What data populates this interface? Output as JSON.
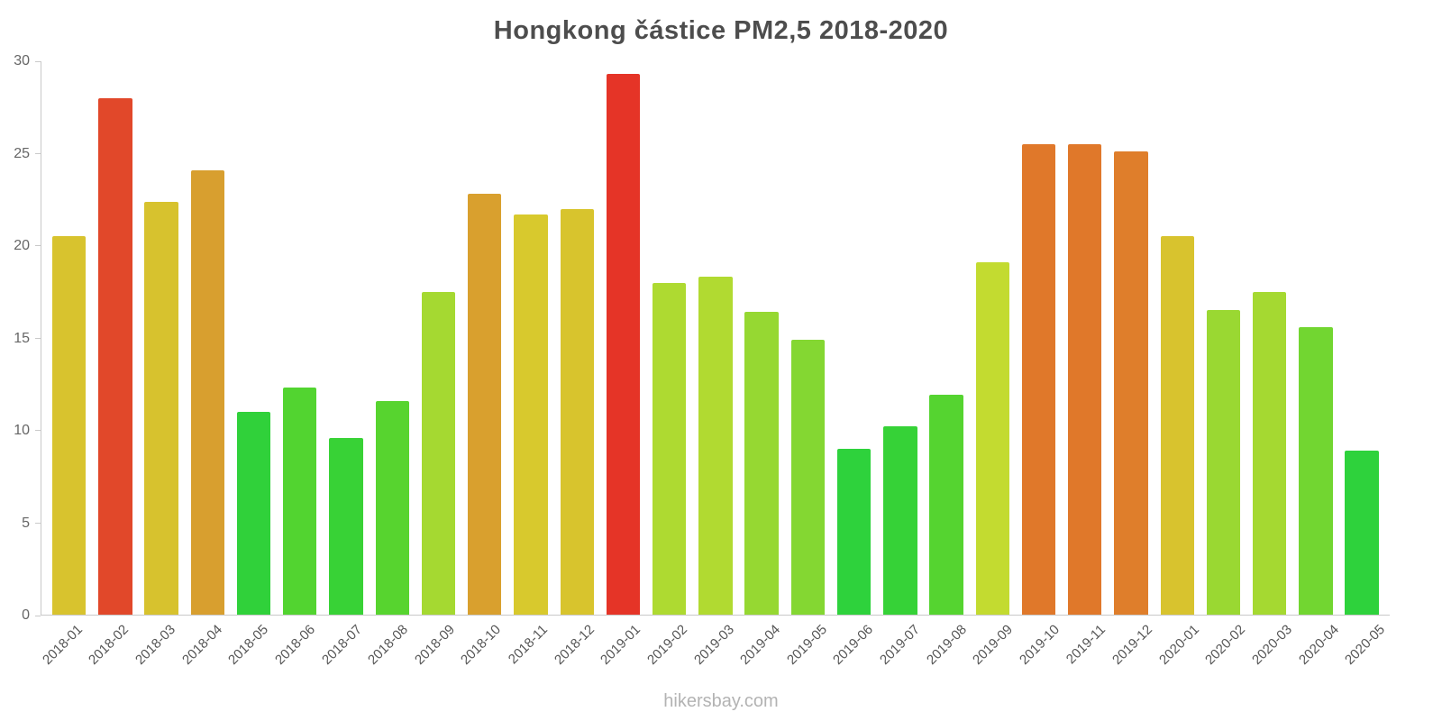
{
  "chart_data": {
    "type": "bar",
    "title": "Hongkong částice PM2,5 2018-2020",
    "xlabel": "",
    "ylabel": "",
    "ylim": [
      0,
      30
    ],
    "yticks": [
      0,
      5,
      10,
      15,
      20,
      25,
      30
    ],
    "grid": false,
    "legend": false,
    "categories": [
      "2018-01",
      "2018-02",
      "2018-03",
      "2018-04",
      "2018-05",
      "2018-06",
      "2018-07",
      "2018-08",
      "2018-09",
      "2018-10",
      "2018-11",
      "2018-12",
      "2019-01",
      "2019-02",
      "2019-03",
      "2019-04",
      "2019-05",
      "2019-06",
      "2019-07",
      "2019-08",
      "2019-09",
      "2019-10",
      "2019-11",
      "2019-12",
      "2020-01",
      "2020-02",
      "2020-03",
      "2020-04",
      "2020-05"
    ],
    "values": [
      20.5,
      28.0,
      22.4,
      24.1,
      11.0,
      12.3,
      9.6,
      11.6,
      17.5,
      22.8,
      21.7,
      22.0,
      29.3,
      18.0,
      18.3,
      16.4,
      14.9,
      9.0,
      10.2,
      11.9,
      19.1,
      25.5,
      25.5,
      25.1,
      20.5,
      16.5,
      17.5,
      15.6,
      8.9
    ],
    "colors": [
      "#d8c32e",
      "#e1482a",
      "#d7c22e",
      "#d89f2f",
      "#30d13a",
      "#52d430",
      "#38d236",
      "#57d42f",
      "#a5d931",
      "#d9a02e",
      "#d8c92d",
      "#d8c42d",
      "#e53427",
      "#aeda31",
      "#b1da31",
      "#96d832",
      "#84d732",
      "#2ed23c",
      "#36d237",
      "#55d430",
      "#c3db30",
      "#e0782a",
      "#e0782a",
      "#df7e2b",
      "#d8c32e",
      "#9ad832",
      "#a5d931",
      "#72d631",
      "#2ed23c"
    ]
  },
  "footer": {
    "text": "hikersbay.com"
  },
  "theme": {
    "background": "#ffffff",
    "axis_color": "#c9c9c9",
    "title_color": "#4d4d4d",
    "y_tick_label_color": "#666666",
    "x_tick_label_color": "#555555",
    "footer_color": "#b3b3b3"
  }
}
